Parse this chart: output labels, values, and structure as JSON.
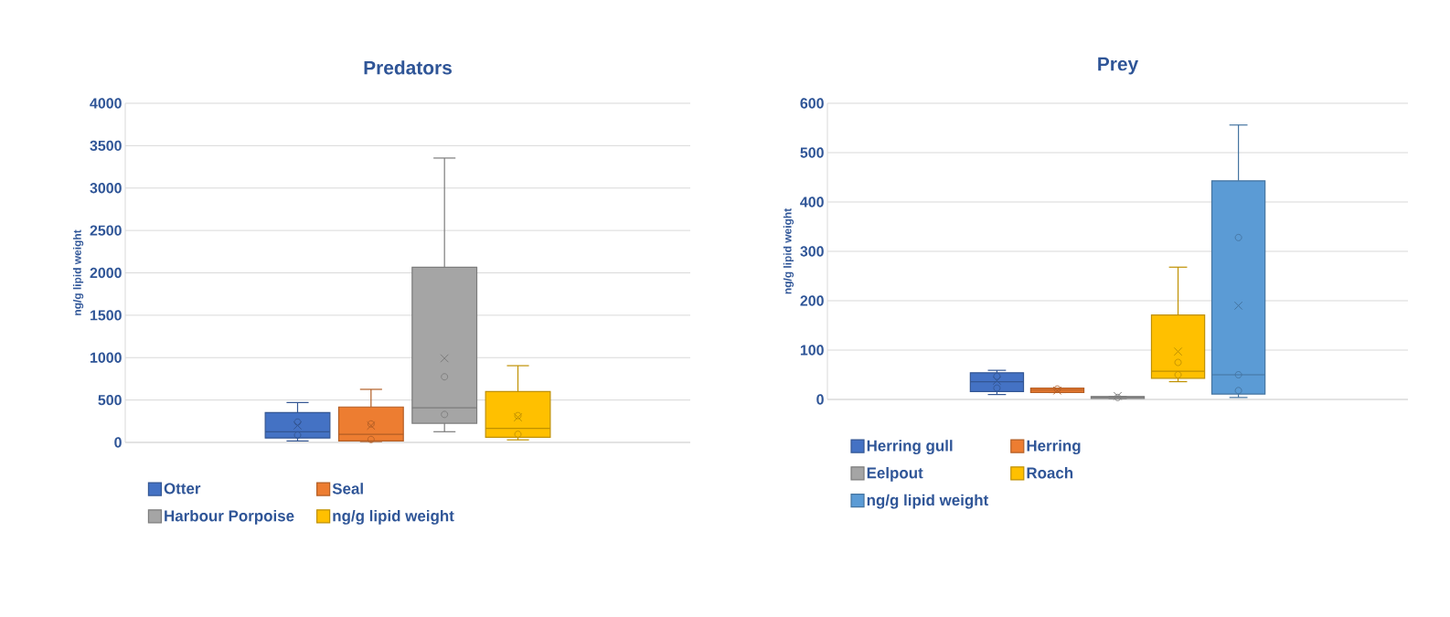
{
  "chart_data": [
    {
      "type": "box",
      "title": "Predators",
      "ylabel": "ng/g lipid weight",
      "categories": [
        null
      ],
      "ylim": [
        0,
        4000
      ],
      "yticks": [
        0,
        500,
        1000,
        1500,
        2000,
        2500,
        3000,
        3500,
        4000
      ],
      "grid": "y",
      "legend": "bottom",
      "series": [
        {
          "name": "Otter",
          "color": "#4472c4",
          "boxes": [
            {
              "low": 17,
              "q1": 52,
              "median": 126,
              "q3": 352,
              "high": 470,
              "mean": 200,
              "outliers": [
                240,
                87
              ]
            }
          ]
        },
        {
          "name": "Seal",
          "color": "#ed7d31",
          "boxes": [
            {
              "low": 0,
              "q1": 17,
              "median": 96,
              "q3": 418,
              "high": 626,
              "mean": 198,
              "outliers": [
                218,
                35
              ]
            }
          ]
        },
        {
          "name": "Harbour Porpoise",
          "color": "#a5a5a5",
          "boxes": [
            {
              "low": 126,
              "q1": 226,
              "median": 409,
              "q3": 2066,
              "high": 3354,
              "mean": 992,
              "outliers": [
                774,
                330
              ]
            }
          ]
        },
        {
          "name": "ng/g lipid weight",
          "color": "#ffc000",
          "boxes": [
            {
              "low": 30,
              "q1": 61,
              "median": 165,
              "q3": 600,
              "high": 905,
              "mean": 296,
              "outliers": [
                316,
                96
              ]
            }
          ]
        }
      ]
    },
    {
      "type": "box",
      "title": "Prey",
      "ylabel": "ng/g lipid weight",
      "categories": [
        null
      ],
      "ylim": [
        0,
        600
      ],
      "yticks": [
        0,
        100,
        200,
        300,
        400,
        500,
        600
      ],
      "grid": "y",
      "legend": "bottom",
      "series": [
        {
          "name": "Herring gull",
          "color": "#4472c4",
          "boxes": [
            {
              "low": 10,
              "q1": 16,
              "median": 36,
              "q3": 54,
              "high": 59,
              "mean": 38,
              "outliers": [
                47,
                23
              ]
            }
          ]
        },
        {
          "name": "Herring",
          "color": "#ed7d31",
          "boxes": [
            {
              "low": 14,
              "q1": 14,
              "median": 19,
              "q3": 23,
              "high": 23,
              "mean": 18,
              "outliers": [
                21
              ]
            }
          ]
        },
        {
          "name": "Eelpout",
          "color": "#a5a5a5",
          "boxes": [
            {
              "low": 2,
              "q1": 2,
              "median": 5,
              "q3": 6,
              "high": 6,
              "mean": 7,
              "outliers": [
                4
              ]
            }
          ]
        },
        {
          "name": "Roach",
          "color": "#ffc000",
          "boxes": [
            {
              "low": 36,
              "q1": 43,
              "median": 57,
              "q3": 171,
              "high": 268,
              "mean": 97,
              "outliers": [
                75,
                50
              ]
            }
          ]
        },
        {
          "name": "ng/g lipid weight",
          "color": "#5b9bd5",
          "boxes": [
            {
              "low": 4,
              "q1": 11,
              "median": 50,
              "q3": 443,
              "high": 556,
              "mean": 190,
              "outliers": [
                328,
                50,
                18
              ]
            }
          ]
        }
      ]
    }
  ]
}
